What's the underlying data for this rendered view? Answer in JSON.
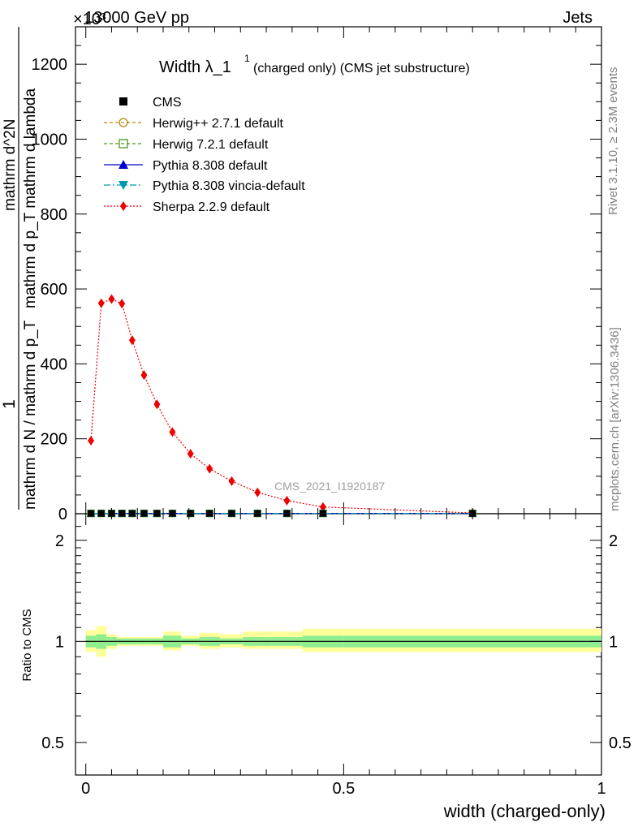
{
  "header": {
    "energy_label": "13000 GeV pp",
    "process_label": "Jets",
    "exponent_label": "×10³"
  },
  "side_labels": {
    "rivet": "Rivet 3.1.10, ≥ 2.3M events",
    "mcplots": "mcplots.cern.ch [arXiv:1306.3436]"
  },
  "chart_data": {
    "type": "line",
    "title": "Width λ_1¹ (charged only) (CMS jet substructure)",
    "title_main": "Width λ_1",
    "title_sup": "1",
    "title_rest": "(charged only) (CMS jet substructure)",
    "watermark": "CMS_2021_I1920187",
    "xlabel": "width (charged-only)",
    "ylabel": "1 / mathrm d N / mathrm d p_T · mathrm d² N / mathrm d p_T mathrm d lambda",
    "ylabel_parts": {
      "numerator": "1",
      "denominator": "mathrm d N / mathrm d p_T",
      "right_top": "mathrm d^2N",
      "right_bottom": "mathrm d p_T mathrm d lambda"
    },
    "ratio_ylabel": "Ratio to CMS",
    "xlim": [
      -0.02,
      1.0
    ],
    "ylim": [
      0,
      1300
    ],
    "y_scale_note": "×10³",
    "x_ticks": [
      0,
      0.5,
      1
    ],
    "x_tick_labels": [
      "0",
      "0.5",
      "1"
    ],
    "y_ticks": [
      0,
      200,
      400,
      600,
      800,
      1000,
      1200
    ],
    "y_tick_labels": [
      "0",
      "200",
      "400",
      "600",
      "800",
      "1000",
      "1200"
    ],
    "ratio_ylim": [
      0.4,
      2.4
    ],
    "ratio_y_ticks": [
      0.5,
      1,
      2
    ],
    "ratio_y_tick_labels": [
      "0.5",
      "1",
      "2"
    ],
    "legend_position": "top-left",
    "series": [
      {
        "name": "CMS",
        "color": "#000000",
        "marker": "square",
        "x": [
          0.01,
          0.03,
          0.05,
          0.07,
          0.09,
          0.113,
          0.138,
          0.168,
          0.203,
          0.24,
          0.283,
          0.333,
          0.39,
          0.46,
          0.75
        ],
        "values": [
          0.8,
          0.8,
          0.8,
          0.8,
          0.8,
          0.8,
          0.8,
          0.8,
          0.8,
          0.8,
          0.8,
          0.8,
          0.8,
          0.8,
          0.8
        ]
      },
      {
        "name": "Herwig++ 2.7.1 default",
        "color": "#b8860b",
        "marker": "circle-open",
        "x": [
          0.01,
          0.03,
          0.05,
          0.07,
          0.09,
          0.113,
          0.138,
          0.168,
          0.203,
          0.24,
          0.283,
          0.333,
          0.39,
          0.46,
          0.75
        ],
        "values": [
          0.8,
          0.8,
          0.8,
          0.8,
          0.8,
          0.8,
          0.8,
          0.8,
          0.8,
          0.8,
          0.8,
          0.8,
          0.8,
          0.8,
          0.8
        ]
      },
      {
        "name": "Herwig 7.2.1 default",
        "color": "#4a9a1a",
        "marker": "square-open",
        "x": [
          0.01,
          0.03,
          0.05,
          0.07,
          0.09,
          0.113,
          0.138,
          0.168,
          0.203,
          0.24,
          0.283,
          0.333,
          0.39,
          0.46,
          0.75
        ],
        "values": [
          0.8,
          0.8,
          0.8,
          0.8,
          0.8,
          0.8,
          0.8,
          0.8,
          0.8,
          0.8,
          0.8,
          0.8,
          0.8,
          0.8,
          0.8
        ]
      },
      {
        "name": "Pythia 8.308 default",
        "color": "#0000cc",
        "marker": "triangle-up",
        "x": [
          0.01,
          0.03,
          0.05,
          0.07,
          0.09,
          0.113,
          0.138,
          0.168,
          0.203,
          0.24,
          0.283,
          0.333,
          0.39,
          0.46,
          0.75
        ],
        "values": [
          0.8,
          0.8,
          0.8,
          0.8,
          0.8,
          0.8,
          0.8,
          0.8,
          0.8,
          0.8,
          0.8,
          0.8,
          0.8,
          0.8,
          0.8
        ]
      },
      {
        "name": "Pythia 8.308 vincia-default",
        "color": "#0099aa",
        "marker": "triangle-down",
        "x": [
          0.01,
          0.03,
          0.05,
          0.07,
          0.09,
          0.113,
          0.138,
          0.168,
          0.203,
          0.24,
          0.283,
          0.333,
          0.39,
          0.46,
          0.75
        ],
        "values": [
          0.8,
          0.8,
          0.8,
          0.8,
          0.8,
          0.8,
          0.8,
          0.8,
          0.8,
          0.8,
          0.8,
          0.8,
          0.8,
          0.8,
          0.8
        ]
      },
      {
        "name": "Sherpa 2.2.9 default",
        "color": "#ee0000",
        "marker": "diamond",
        "x": [
          0.01,
          0.03,
          0.05,
          0.07,
          0.09,
          0.113,
          0.138,
          0.168,
          0.203,
          0.24,
          0.283,
          0.333,
          0.39,
          0.46,
          0.75
        ],
        "values": [
          195,
          562,
          573,
          561,
          463,
          370,
          292,
          218,
          160,
          120,
          87,
          57,
          35,
          18,
          2
        ]
      }
    ],
    "ratio_band": {
      "x_edges": [
        0.0,
        0.02,
        0.04,
        0.06,
        0.08,
        0.1,
        0.125,
        0.15,
        0.185,
        0.22,
        0.26,
        0.305,
        0.36,
        0.42,
        0.5,
        1.0
      ],
      "inner_low": [
        0.96,
        0.95,
        0.97,
        0.98,
        0.98,
        0.98,
        0.98,
        0.96,
        0.98,
        0.97,
        0.98,
        0.97,
        0.97,
        0.96,
        0.96
      ],
      "inner_high": [
        1.04,
        1.05,
        1.03,
        1.02,
        1.02,
        1.02,
        1.02,
        1.04,
        1.02,
        1.03,
        1.02,
        1.03,
        1.03,
        1.04,
        1.04
      ],
      "outer_low": [
        0.93,
        0.9,
        0.95,
        0.97,
        0.97,
        0.97,
        0.97,
        0.94,
        0.97,
        0.95,
        0.96,
        0.95,
        0.95,
        0.93,
        0.93
      ],
      "outer_high": [
        1.08,
        1.11,
        1.05,
        1.03,
        1.03,
        1.03,
        1.03,
        1.07,
        1.04,
        1.06,
        1.05,
        1.07,
        1.07,
        1.09,
        1.09
      ],
      "inner_color": "#90ee90",
      "outer_color": "#ffff99"
    }
  }
}
